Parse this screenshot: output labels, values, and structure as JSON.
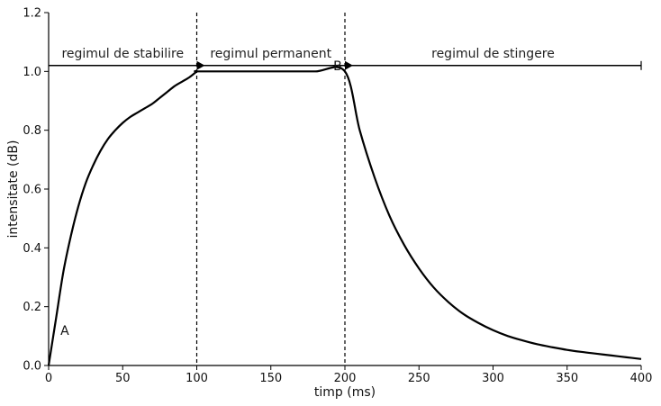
{
  "chart_data": {
    "type": "line",
    "title": "",
    "xlabel": "timp (ms)",
    "ylabel": "intensitate (dB)",
    "xlim": [
      0,
      400
    ],
    "ylim": [
      0,
      1.2
    ],
    "xticks": [
      0,
      50,
      100,
      150,
      200,
      250,
      300,
      350,
      400
    ],
    "yticks": [
      0.0,
      0.2,
      0.4,
      0.6,
      0.8,
      1.0,
      1.2
    ],
    "xtick_labels": [
      "0",
      "50",
      "100",
      "150",
      "200",
      "250",
      "300",
      "350",
      "400"
    ],
    "ytick_labels": [
      "0.0",
      "0.2",
      "0.4",
      "0.6",
      "0.8",
      "1.0",
      "1.2"
    ],
    "grid": false,
    "series": [
      {
        "name": "intensitate",
        "x": [
          0,
          5,
          10,
          15,
          20,
          25,
          30,
          35,
          40,
          45,
          50,
          55,
          60,
          65,
          70,
          75,
          80,
          85,
          90,
          95,
          100,
          100,
          120,
          140,
          160,
          180,
          200,
          210,
          220,
          230,
          240,
          250,
          260,
          270,
          280,
          290,
          300,
          310,
          320,
          330,
          340,
          350,
          360,
          370,
          380,
          390,
          400
        ],
        "y": [
          0.0,
          0.16,
          0.32,
          0.44,
          0.54,
          0.62,
          0.68,
          0.73,
          0.77,
          0.8,
          0.825,
          0.845,
          0.86,
          0.875,
          0.89,
          0.91,
          0.93,
          0.95,
          0.965,
          0.98,
          1.0,
          1.0,
          1.0,
          1.0,
          1.0,
          1.0,
          1.0,
          0.8,
          0.64,
          0.51,
          0.41,
          0.33,
          0.265,
          0.215,
          0.175,
          0.145,
          0.12,
          0.1,
          0.085,
          0.072,
          0.062,
          0.053,
          0.046,
          0.04,
          0.034,
          0.028,
          0.022
        ]
      }
    ],
    "vlines": [
      100,
      200
    ],
    "phase_arrow_y": 1.02,
    "phase_arrow_markers": [
      100,
      200
    ],
    "regions": [
      {
        "label": "regimul de stabilire",
        "x": 50
      },
      {
        "label": "regimul permanent",
        "x": 150
      },
      {
        "label": "regimul de stingere",
        "x": 300
      }
    ],
    "point_labels": [
      {
        "label": "A",
        "x": 8,
        "y": 0.12
      },
      {
        "label": "B",
        "x": 198,
        "y": 1.02
      }
    ]
  }
}
